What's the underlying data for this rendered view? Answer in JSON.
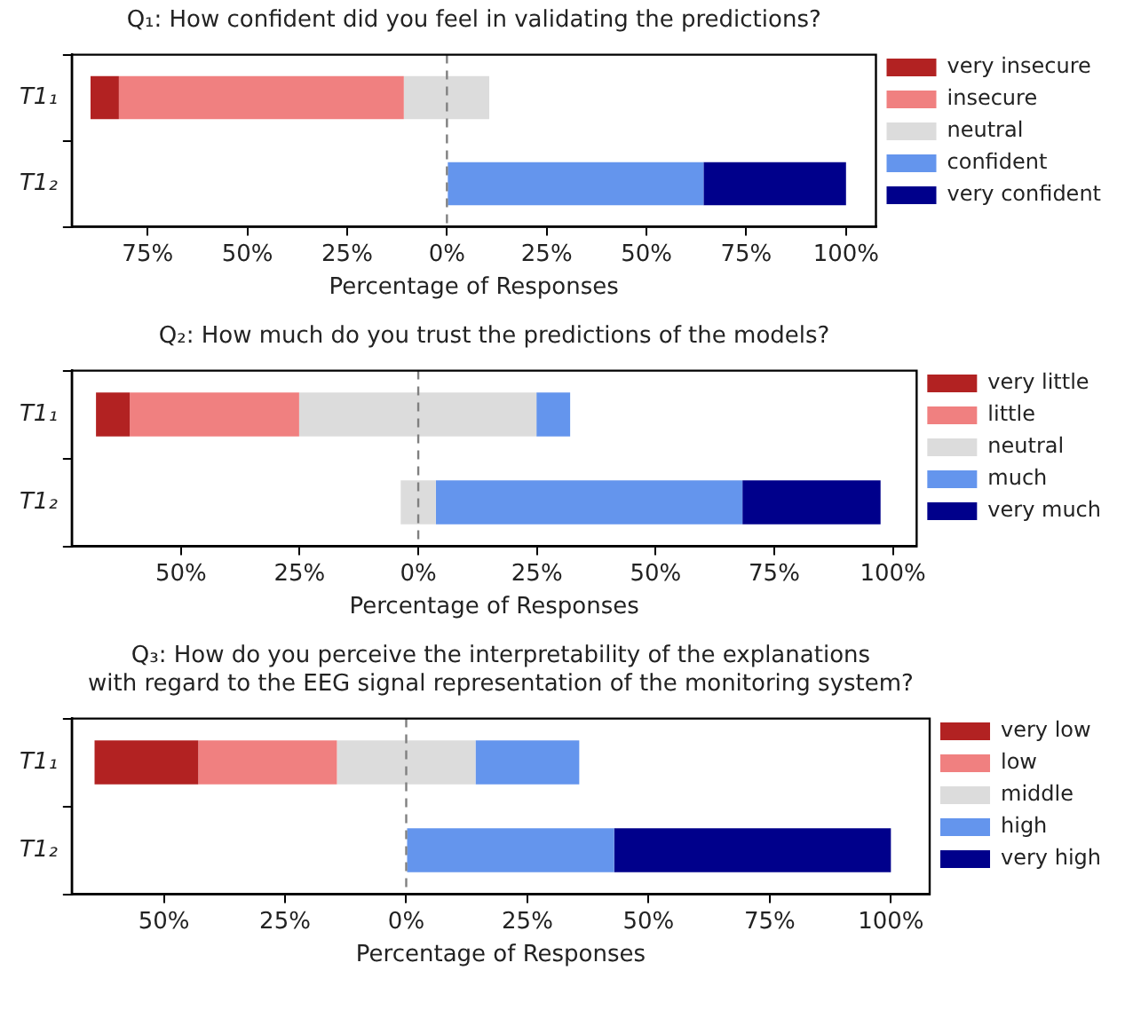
{
  "chart_data": [
    {
      "type": "bar",
      "orientation": "horizontal",
      "title": "Q₁: How confident did you feel in validating the predictions?",
      "xlabel": "Percentage of Responses",
      "categories": [
        "T1₁",
        "T1₂"
      ],
      "series": [
        {
          "name": "very insecure",
          "color": "#b22222",
          "base": [
            -89.3,
            null
          ],
          "values": [
            7.1,
            null
          ]
        },
        {
          "name": "insecure",
          "color": "#f08080",
          "base": [
            -82.2,
            null
          ],
          "values": [
            71.4,
            null
          ]
        },
        {
          "name": "neutral",
          "color": "#dcdcdc",
          "base": [
            -10.8,
            null
          ],
          "values": [
            21.4,
            null
          ]
        },
        {
          "name": "confident",
          "color": "#6495ed",
          "base": [
            null,
            0
          ],
          "values": [
            null,
            64.3
          ]
        },
        {
          "name": "very confident",
          "color": "#00008b",
          "base": [
            null,
            64.3
          ],
          "values": [
            null,
            35.7
          ]
        }
      ],
      "xlim": [
        -94,
        107.5
      ],
      "xticks": [
        {
          "value": -75,
          "label": "75%"
        },
        {
          "value": -50,
          "label": "50%"
        },
        {
          "value": -25,
          "label": "25%"
        },
        {
          "value": 0,
          "label": "0%"
        },
        {
          "value": 25,
          "label": "25%"
        },
        {
          "value": 50,
          "label": "50%"
        },
        {
          "value": 75,
          "label": "75%"
        },
        {
          "value": 100,
          "label": "100%"
        }
      ],
      "ref_lines": [
        {
          "axis": "x",
          "value": 0,
          "color": "#808080",
          "line_style": "dashed"
        }
      ],
      "legend": "right"
    },
    {
      "type": "bar",
      "orientation": "horizontal",
      "title": "Q₂: How much do you trust the predictions of the models?",
      "xlabel": "Percentage of Responses",
      "categories": [
        "T1₁",
        "T1₂"
      ],
      "series": [
        {
          "name": "very little",
          "color": "#b22222",
          "base": [
            -67.9,
            null
          ],
          "values": [
            7.1,
            null
          ]
        },
        {
          "name": "little",
          "color": "#f08080",
          "base": [
            -60.8,
            null
          ],
          "values": [
            35.7,
            null
          ]
        },
        {
          "name": "neutral",
          "color": "#dcdcdc",
          "base": [
            -25.1,
            -3.7
          ],
          "values": [
            50,
            7.4
          ]
        },
        {
          "name": "much",
          "color": "#6495ed",
          "base": [
            24.9,
            3.7
          ],
          "values": [
            7.1,
            64.6
          ]
        },
        {
          "name": "very much",
          "color": "#00008b",
          "base": [
            null,
            68.3
          ],
          "values": [
            null,
            29.1
          ]
        }
      ],
      "xlim": [
        -73,
        105
      ],
      "xticks": [
        {
          "value": -50,
          "label": "50%"
        },
        {
          "value": -25,
          "label": "25%"
        },
        {
          "value": 0,
          "label": "0%"
        },
        {
          "value": 25,
          "label": "25%"
        },
        {
          "value": 50,
          "label": "50%"
        },
        {
          "value": 75,
          "label": "75%"
        },
        {
          "value": 100,
          "label": "100%"
        }
      ],
      "ref_lines": [
        {
          "axis": "x",
          "value": 0,
          "color": "#808080",
          "line_style": "dashed"
        }
      ],
      "legend": "right"
    },
    {
      "type": "bar",
      "orientation": "horizontal",
      "title": "Q₃: How do you perceive the interpretability of the explanations\nwith regard to the EEG signal representation of the monitoring system?",
      "xlabel": "Percentage of Responses",
      "categories": [
        "T1₁",
        "T1₂"
      ],
      "series": [
        {
          "name": "very low",
          "color": "#b22222",
          "base": [
            -64.3,
            null
          ],
          "values": [
            21.4,
            null
          ]
        },
        {
          "name": "low",
          "color": "#f08080",
          "base": [
            -42.9,
            null
          ],
          "values": [
            28.6,
            null
          ]
        },
        {
          "name": "middle",
          "color": "#dcdcdc",
          "base": [
            -14.3,
            null
          ],
          "values": [
            28.6,
            null
          ]
        },
        {
          "name": "high",
          "color": "#6495ed",
          "base": [
            14.3,
            0
          ],
          "values": [
            21.4,
            42.9
          ]
        },
        {
          "name": "very high",
          "color": "#00008b",
          "base": [
            null,
            42.9
          ],
          "values": [
            null,
            57.1
          ]
        }
      ],
      "xlim": [
        -69,
        108
      ],
      "xticks": [
        {
          "value": -50,
          "label": "50%"
        },
        {
          "value": -25,
          "label": "25%"
        },
        {
          "value": 0,
          "label": "0%"
        },
        {
          "value": 25,
          "label": "25%"
        },
        {
          "value": 50,
          "label": "50%"
        },
        {
          "value": 75,
          "label": "75%"
        },
        {
          "value": 100,
          "label": "100%"
        }
      ],
      "ref_lines": [
        {
          "axis": "x",
          "value": 0,
          "color": "#808080",
          "line_style": "dashed"
        }
      ],
      "legend": "right"
    }
  ]
}
